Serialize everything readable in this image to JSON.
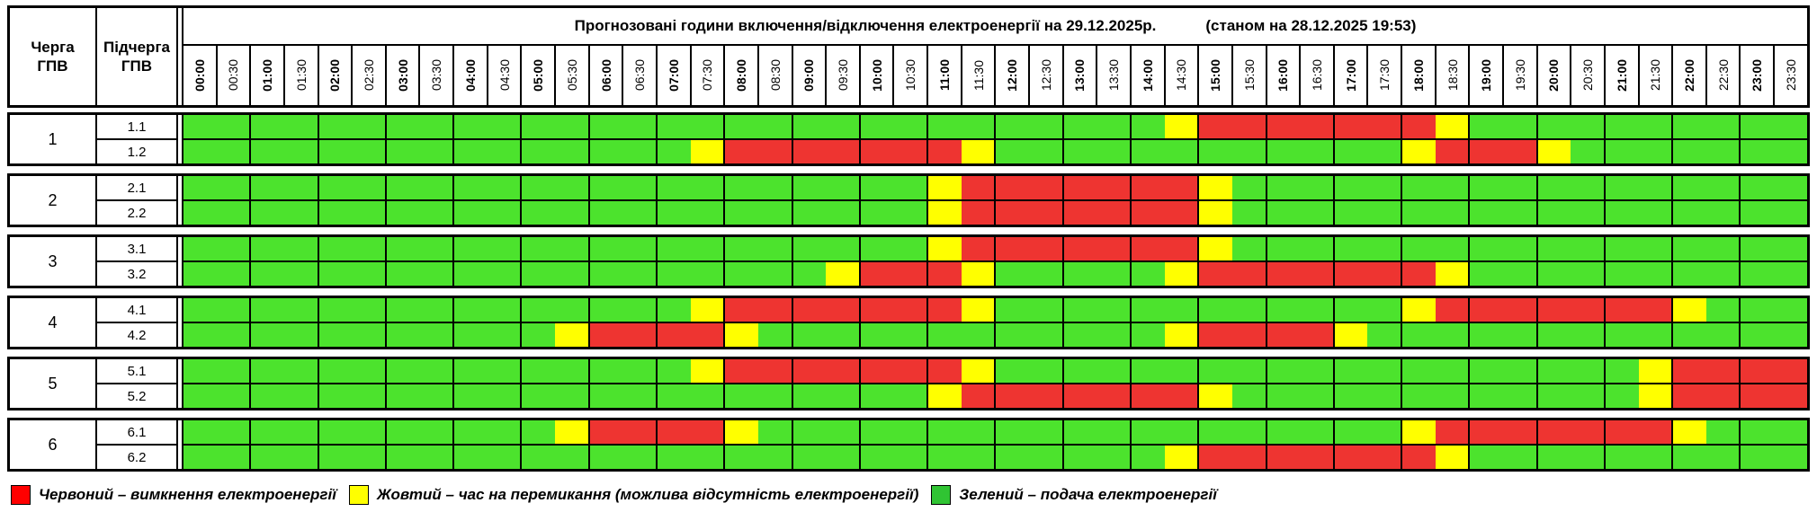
{
  "header": {
    "queue_col": "Черга ГПВ",
    "subqueue_col": "Підчерга ГПВ",
    "title": "Прогнозовані години включення/відключення електроенергії на 29.12.2025р.",
    "as_of": "(станом на 28.12.2025 19:53)"
  },
  "chart_data": {
    "type": "heatmap",
    "title": "Прогнозовані години включення/відключення електроенергії на 29.12.2025р.",
    "subtitle": "(станом на 28.12.2025 19:53)",
    "x_labels": [
      "00:00",
      "00:30",
      "01:00",
      "01:30",
      "02:00",
      "02:30",
      "03:00",
      "03:30",
      "04:00",
      "04:30",
      "05:00",
      "05:30",
      "06:00",
      "06:30",
      "07:00",
      "07:30",
      "08:00",
      "08:30",
      "09:00",
      "09:30",
      "10:00",
      "10:30",
      "11:00",
      "11:30",
      "12:00",
      "12:30",
      "13:00",
      "13:30",
      "14:00",
      "14:30",
      "15:00",
      "15:30",
      "16:00",
      "16:30",
      "17:00",
      "17:30",
      "18:00",
      "18:30",
      "19:00",
      "19:30",
      "20:00",
      "20:30",
      "21:00",
      "21:30",
      "22:00",
      "22:30",
      "23:00",
      "23:30"
    ],
    "states": {
      "G": {
        "label": "подача електроенергії",
        "color": "#4ce32d"
      },
      "Y": {
        "label": "час на перемикання (можлива відсутність електроенергії)",
        "color": "#ffff00"
      },
      "R": {
        "label": "вимкнення електроенергії",
        "color": "#ee3431"
      }
    },
    "groups": [
      {
        "queue": "1",
        "rows": [
          {
            "label": "1.1",
            "slots": "GGGGGGGGGGGGGGGGGGGGGGGGGGGGGYRRRRRRRYGGGGGGGGGG"
          },
          {
            "label": "1.2",
            "slots": "GGGGGGGGGGGGGGGYRRRRRRRYGGGGGGGGGGGGYRRRYGGGGGGG"
          }
        ]
      },
      {
        "queue": "2",
        "rows": [
          {
            "label": "2.1",
            "slots": "GGGGGGGGGGGGGGGGGGGGGGYRRRRRRRYGGGGGGGGGGGGGGGGG"
          },
          {
            "label": "2.2",
            "slots": "GGGGGGGGGGGGGGGGGGGGGGYRRRRRRRYGGGGGGGGGGGGGGGGG"
          }
        ]
      },
      {
        "queue": "3",
        "rows": [
          {
            "label": "3.1",
            "slots": "GGGGGGGGGGGGGGGGGGGGGGYRRRRRRRYGGGGGGGGGGGGGGGGG"
          },
          {
            "label": "3.2",
            "slots": "GGGGGGGGGGGGGGGGGGGYRRRYGGGGGYRRRRRRRYGGGGGGGGGG"
          }
        ]
      },
      {
        "queue": "4",
        "rows": [
          {
            "label": "4.1",
            "slots": "GGGGGGGGGGGGGGGYRRRRRRRYGGGGGGGGGGGGYRRRRRRRYGGG"
          },
          {
            "label": "4.2",
            "slots": "GGGGGGGGGGGYRRRRYGGGGGGGGGGGGYRRRRYGGGGGGGGGGGGG"
          }
        ]
      },
      {
        "queue": "5",
        "rows": [
          {
            "label": "5.1",
            "slots": "GGGGGGGGGGGGGGGYRRRRRRRYGGGGGGGGGGGGGGGGGGGYRRRR"
          },
          {
            "label": "5.2",
            "slots": "GGGGGGGGGGGGGGGGGGGGGGYRRRRRRRYGGGGGGGGGGGGYRRRR"
          }
        ]
      },
      {
        "queue": "6",
        "rows": [
          {
            "label": "6.1",
            "slots": "GGGGGGGGGGGYRRRRYGGGGGGGGGGGGGGGGGGGYRRRRRRRYGGG"
          },
          {
            "label": "6.2",
            "slots": "GGGGGGGGGGGGGGGGGGGGGGGGGGGGGYRRRRRRRYGGGGGGGGGG"
          }
        ]
      }
    ]
  },
  "legend": [
    {
      "state": "R",
      "swatch": "#ff0000",
      "label": "Червоний – вимкнення електроенергії"
    },
    {
      "state": "Y",
      "swatch": "#ffff00",
      "label": "Жовтий – час на перемикання (можлива відсутність електроенергії)"
    },
    {
      "state": "G",
      "swatch": "#30c433",
      "label": "Зелений – подача електроенергії"
    }
  ]
}
